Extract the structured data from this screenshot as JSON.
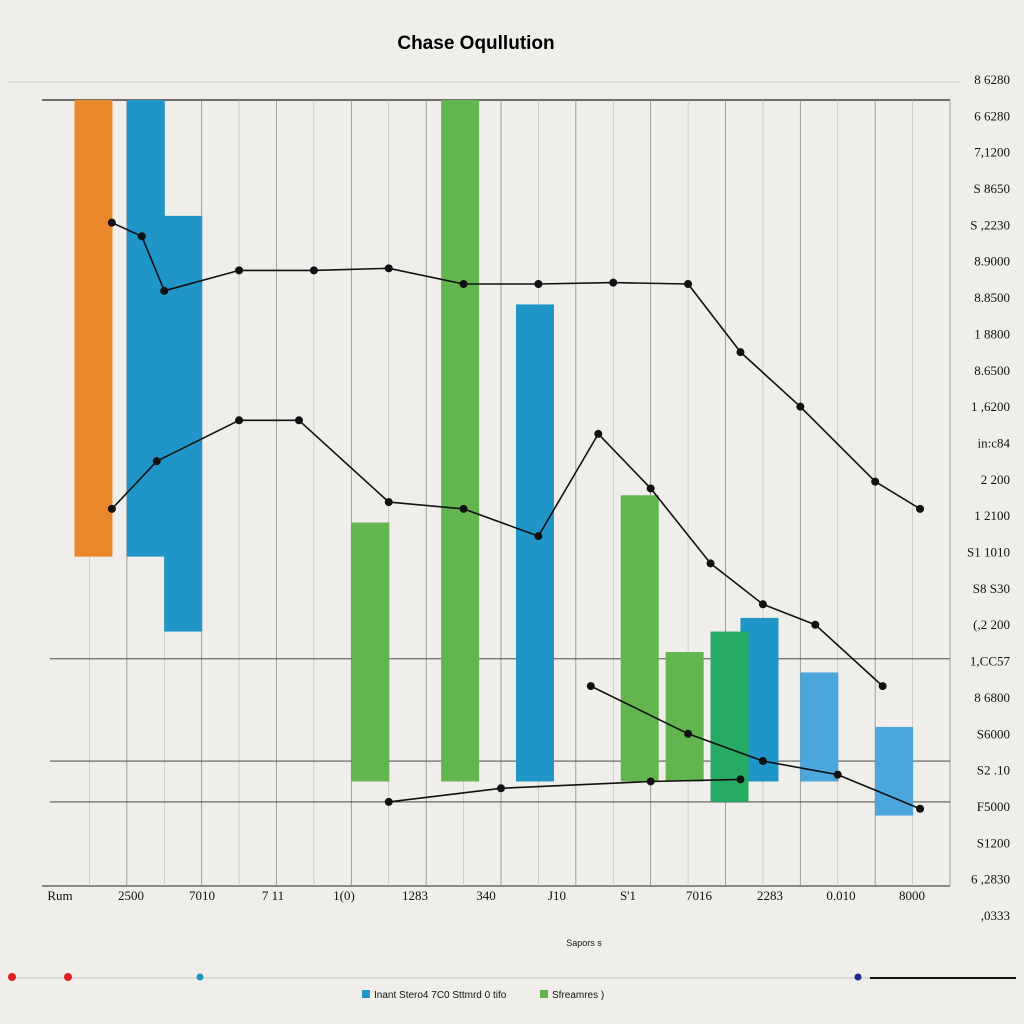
{
  "chart_data": {
    "type": "bar",
    "title": "Chase Oqullution",
    "xlabel": "Sapors s",
    "ylabel": "",
    "x_tick_labels": [
      "Rum",
      "2500",
      "7010",
      "7 11",
      "1(0)",
      "1283",
      "340",
      "J10",
      "S'1",
      "7016",
      "2283",
      "0.010",
      "8000"
    ],
    "y_tick_labels": [
      "8 6280",
      "6 6280",
      "7,1200",
      "S 8650",
      "S ,2230",
      "8.9000",
      "8.8500",
      "1 8800",
      "8.6500",
      "1 ,6200",
      "in:c84",
      "2 200",
      "1 2100",
      "S1 1010",
      "S8 S30",
      "(,2 200",
      "1,CC57",
      "8 6800",
      "S6000",
      "S2 .10",
      "F5000",
      "S1200",
      "6 ,2830",
      ",0333"
    ],
    "colors": {
      "orange": "#e8882a",
      "blue": "#1f96c7",
      "light_blue": "#4ba6dc",
      "green": "#63b54f",
      "teal_green": "#27aa64",
      "line": "#111111",
      "red": "#e02020"
    },
    "series": [
      {
        "color": "orange",
        "bars": [
          {
            "x": 0.3,
            "top": 100,
            "bottom": 33
          }
        ]
      },
      {
        "color": "blue",
        "bars": [
          {
            "x": 1.0,
            "top": 100,
            "bottom": 33
          },
          {
            "x": 1.5,
            "top": 83,
            "bottom": 22
          },
          {
            "x": 6.2,
            "top": 70,
            "bottom": 0
          },
          {
            "x": 9.2,
            "top": 24,
            "bottom": 0
          }
        ]
      },
      {
        "color": "green",
        "bars": [
          {
            "x": 4.0,
            "top": 38,
            "bottom": 0
          },
          {
            "x": 5.2,
            "top": 100,
            "bottom": 0
          },
          {
            "x": 7.6,
            "top": 42,
            "bottom": 0
          },
          {
            "x": 8.2,
            "top": 19,
            "bottom": 0
          }
        ]
      },
      {
        "color": "teal_green",
        "bars": [
          {
            "x": 8.8,
            "top": 22,
            "bottom": -3
          }
        ]
      },
      {
        "color": "light_blue",
        "bars": [
          {
            "x": 10.0,
            "top": 16,
            "bottom": 0
          },
          {
            "x": 11.0,
            "top": 8,
            "bottom": -5
          }
        ]
      }
    ],
    "lines": [
      {
        "name": "",
        "points": [
          [
            0.8,
            82
          ],
          [
            1.2,
            80
          ],
          [
            1.5,
            72
          ],
          [
            2.5,
            75
          ],
          [
            3.5,
            75
          ],
          [
            4.5,
            75.3
          ],
          [
            5.5,
            73
          ],
          [
            6.5,
            73
          ],
          [
            7.5,
            73.2
          ],
          [
            8.5,
            73
          ],
          [
            9.2,
            63
          ],
          [
            10,
            55
          ],
          [
            11,
            44
          ],
          [
            11.6,
            40
          ]
        ]
      },
      {
        "name": "",
        "points": [
          [
            0.8,
            40
          ],
          [
            1.4,
            47
          ],
          [
            2.5,
            53
          ],
          [
            3.3,
            53
          ],
          [
            4.5,
            41
          ],
          [
            5.5,
            40
          ],
          [
            6.5,
            36
          ],
          [
            7.3,
            51
          ],
          [
            8.0,
            43
          ],
          [
            8.8,
            32
          ],
          [
            9.5,
            26
          ],
          [
            10.2,
            23
          ],
          [
            11.1,
            14
          ]
        ]
      },
      {
        "name": "",
        "points": [
          [
            7.2,
            14
          ],
          [
            8.5,
            7
          ],
          [
            9.5,
            3
          ],
          [
            10.5,
            1
          ],
          [
            11.6,
            -4
          ]
        ]
      },
      {
        "name": "",
        "points": [
          [
            4.5,
            -3
          ],
          [
            6.0,
            -1
          ],
          [
            8.0,
            0
          ],
          [
            9.2,
            0.3
          ]
        ]
      }
    ],
    "ylim": [
      -8,
      100
    ],
    "xlim": [
      0,
      12
    ],
    "grid": true,
    "legend": {
      "placement": "bottom",
      "entries": [
        {
          "marker": "blue",
          "label": "Inant Stero4 7C0 Sttmrd 0 tifo"
        },
        {
          "marker": "green",
          "label": "Sfreamres )"
        }
      ]
    }
  }
}
